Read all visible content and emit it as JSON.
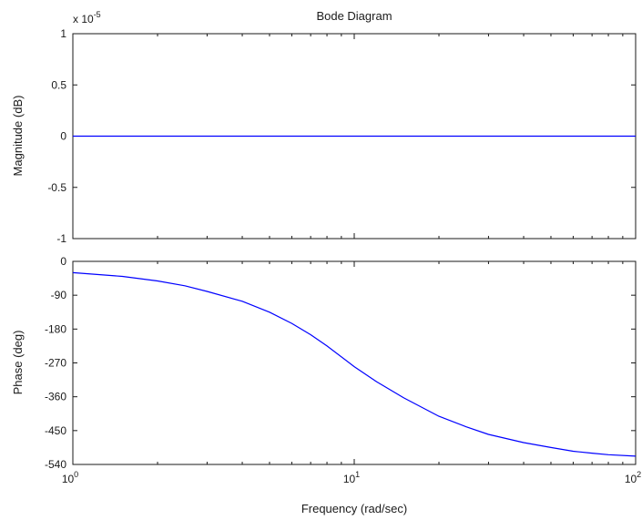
{
  "title": "Bode Diagram",
  "chart_data": [
    {
      "type": "line",
      "panel": "magnitude",
      "ylabel": "Magnitude (dB)",
      "y_multiplier": "x 10",
      "y_multiplier_exponent": "-5",
      "xscale": "log",
      "xlim": [
        1,
        100
      ],
      "ylim": [
        -1,
        1
      ],
      "yticks": [
        1,
        0.5,
        0,
        -0.5,
        -1
      ],
      "ytick_labels": [
        "1",
        "0.5",
        "0",
        "-0.5",
        "-1"
      ],
      "grid": false,
      "series": [
        {
          "x": [
            1,
            100
          ],
          "y": [
            0,
            0
          ]
        }
      ],
      "line_color": "#0000ff"
    },
    {
      "type": "line",
      "panel": "phase",
      "ylabel": "Phase (deg)",
      "xlabel": "Frequency (rad/sec)",
      "xscale": "log",
      "xlim": [
        1,
        100
      ],
      "ylim": [
        -540,
        0
      ],
      "yticks": [
        0,
        -90,
        -180,
        -270,
        -360,
        -450,
        -540
      ],
      "ytick_labels": [
        "0",
        "-90",
        "-180",
        "-270",
        "-360",
        "-450",
        "-540"
      ],
      "xtick_base": "10",
      "xtick_exponents": [
        "0",
        "1",
        "2"
      ],
      "grid": false,
      "series": [
        {
          "x": [
            1,
            1.5,
            2,
            2.5,
            3,
            4,
            5,
            6,
            7,
            8,
            10,
            12,
            15,
            20,
            25,
            30,
            40,
            50,
            60,
            70,
            80,
            100
          ],
          "y": [
            -30,
            -40,
            -52,
            -65,
            -80,
            -106,
            -135,
            -165,
            -195,
            -225,
            -280,
            -320,
            -363,
            -412,
            -440,
            -460,
            -482,
            -495,
            -505,
            -510,
            -514,
            -518
          ]
        }
      ],
      "line_color": "#0000ff"
    }
  ]
}
